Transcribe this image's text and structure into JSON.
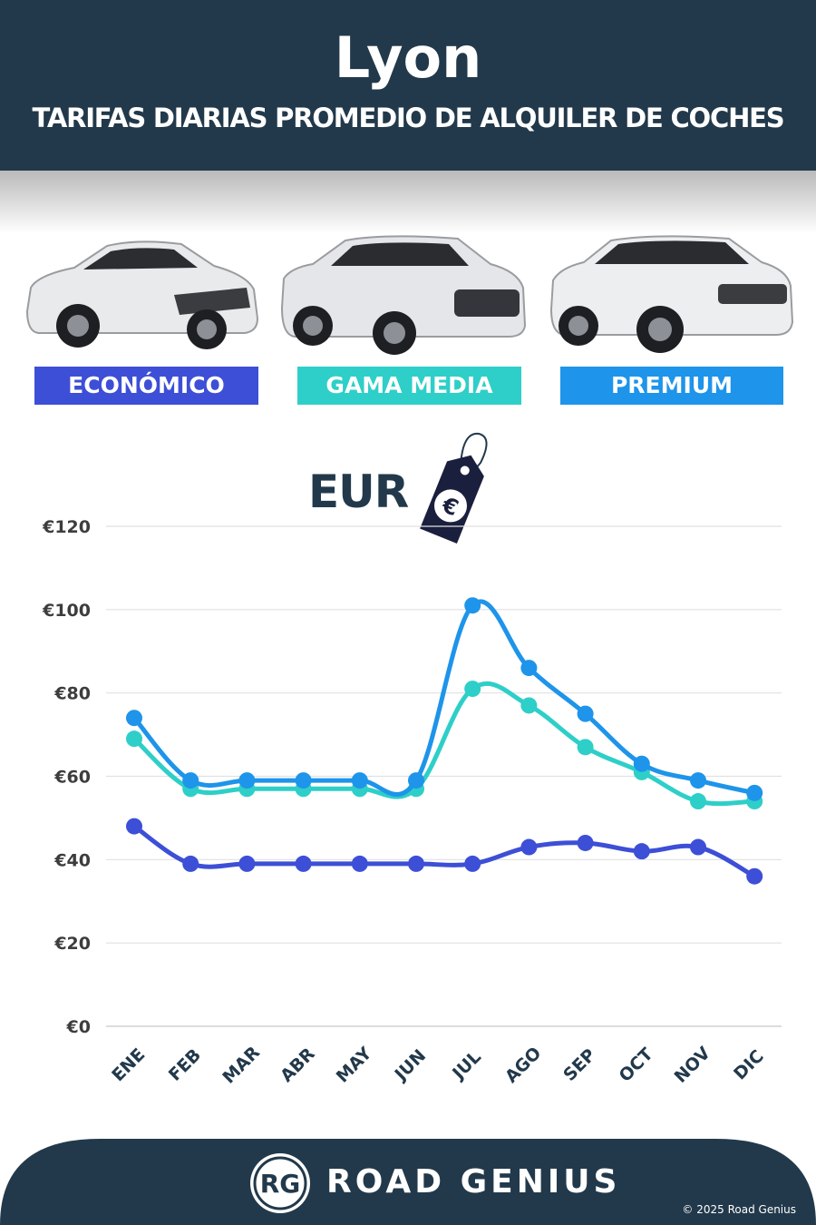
{
  "header": {
    "city": "Lyon",
    "subtitle": "TARIFAS DIARIAS PROMEDIO DE ALQUILER DE COCHES"
  },
  "categories": [
    {
      "label": "ECONÓMICO",
      "color": "#3d4fd6"
    },
    {
      "label": "GAMA MEDIA",
      "color": "#2ecfc8"
    },
    {
      "label": "PREMIUM",
      "color": "#1e94ea"
    }
  ],
  "currency": {
    "label": "EUR",
    "symbol": "€",
    "icon": "price-tag-icon"
  },
  "chart_data": {
    "type": "line",
    "categories": [
      "ENE",
      "FEB",
      "MAR",
      "ABR",
      "MAY",
      "JUN",
      "JUL",
      "AGO",
      "SEP",
      "OCT",
      "NOV",
      "DIC"
    ],
    "series": [
      {
        "name": "ECONÓMICO",
        "color": "#3d4fd6",
        "values": [
          48,
          39,
          39,
          39,
          39,
          39,
          39,
          43,
          44,
          42,
          43,
          36
        ]
      },
      {
        "name": "GAMA MEDIA",
        "color": "#2ecfc8",
        "values": [
          69,
          57,
          57,
          57,
          57,
          57,
          81,
          77,
          67,
          61,
          54,
          54
        ]
      },
      {
        "name": "PREMIUM",
        "color": "#1e94ea",
        "values": [
          74,
          59,
          59,
          59,
          59,
          59,
          101,
          86,
          75,
          63,
          59,
          56
        ]
      }
    ],
    "ylim": [
      0,
      120
    ],
    "yticks": [
      0,
      20,
      40,
      60,
      80,
      100,
      120
    ],
    "ytick_labels": [
      "€0",
      "€20",
      "€40",
      "€60",
      "€80",
      "€100",
      "€120"
    ],
    "grid": true
  },
  "footer": {
    "logo_letters": "RG",
    "brand": "ROAD GENIUS",
    "copyright": "© 2025 Road Genius",
    "background": "#22394b"
  }
}
